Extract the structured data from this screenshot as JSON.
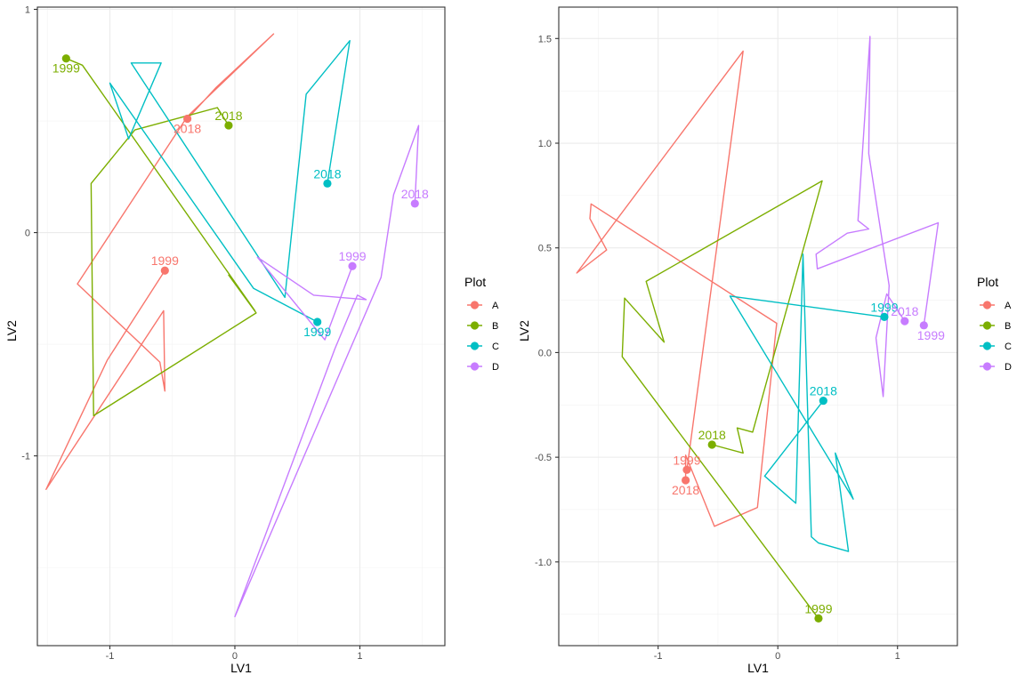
{
  "chart_data": [
    {
      "type": "line",
      "xlabel": "LV1",
      "ylabel": "LV2",
      "xlim": [
        -1.58,
        1.68
      ],
      "ylim": [
        -1.85,
        1.01
      ],
      "xticks": [
        -1,
        0,
        1
      ],
      "yticks": [
        -1,
        0,
        1
      ],
      "grid": true,
      "legend": {
        "title": "Plot",
        "placement": "right",
        "entries": [
          {
            "label": "A",
            "color": "#F8766D"
          },
          {
            "label": "B",
            "color": "#7CAE00"
          },
          {
            "label": "C",
            "color": "#00BFC4"
          },
          {
            "label": "D",
            "color": "#C77CFF"
          }
        ]
      },
      "series": [
        {
          "name": "A",
          "color": "#F8766D",
          "path": [
            [
              -0.56,
              -0.17
            ],
            [
              -1.02,
              -0.57
            ],
            [
              -1.51,
              -1.15
            ],
            [
              -0.57,
              -0.35
            ],
            [
              -0.56,
              -0.71
            ],
            [
              -0.6,
              -0.58
            ],
            [
              -1.26,
              -0.23
            ],
            [
              -0.38,
              0.52
            ],
            [
              0.31,
              0.89
            ],
            [
              -0.15,
              0.65
            ],
            [
              -0.38,
              0.51
            ]
          ],
          "labeled_points": [
            {
              "x": -0.56,
              "y": -0.17,
              "label": "1999"
            },
            {
              "x": -0.38,
              "y": 0.51,
              "label": "2018"
            }
          ]
        },
        {
          "name": "B",
          "color": "#7CAE00",
          "path": [
            [
              -1.35,
              0.78
            ],
            [
              -1.22,
              0.75
            ],
            [
              0.16,
              -0.35
            ],
            [
              -0.05,
              -0.19
            ],
            [
              0.17,
              -0.36
            ],
            [
              -1.13,
              -0.82
            ],
            [
              -1.15,
              0.22
            ],
            [
              -0.8,
              0.46
            ],
            [
              -0.14,
              0.56
            ],
            [
              -0.05,
              0.48
            ]
          ],
          "labeled_points": [
            {
              "x": -1.35,
              "y": 0.78,
              "label": "1999"
            },
            {
              "x": -0.05,
              "y": 0.48,
              "label": "2018"
            }
          ]
        },
        {
          "name": "C",
          "color": "#00BFC4",
          "path": [
            [
              0.66,
              -0.4
            ],
            [
              0.15,
              -0.25
            ],
            [
              -1.0,
              0.67
            ],
            [
              -0.85,
              0.42
            ],
            [
              -0.59,
              0.76
            ],
            [
              -0.83,
              0.76
            ],
            [
              0.4,
              -0.29
            ],
            [
              0.57,
              0.62
            ],
            [
              0.92,
              0.86
            ],
            [
              0.74,
              0.22
            ]
          ],
          "labeled_points": [
            {
              "x": 0.66,
              "y": -0.4,
              "label": "1999"
            },
            {
              "x": 0.74,
              "y": 0.22,
              "label": "2018"
            }
          ]
        },
        {
          "name": "D",
          "color": "#C77CFF",
          "path": [
            [
              0.94,
              -0.15
            ],
            [
              0.72,
              -0.48
            ],
            [
              0.18,
              -0.11
            ],
            [
              0.63,
              -0.28
            ],
            [
              1.05,
              -0.3
            ],
            [
              0.98,
              -0.28
            ],
            [
              0.8,
              -0.52
            ],
            [
              0.0,
              -1.72
            ],
            [
              1.17,
              -0.2
            ],
            [
              1.27,
              0.17
            ],
            [
              1.47,
              0.48
            ],
            [
              1.44,
              0.13
            ]
          ],
          "labeled_points": [
            {
              "x": 0.94,
              "y": -0.15,
              "label": "1999"
            },
            {
              "x": 1.44,
              "y": 0.13,
              "label": "2018"
            }
          ]
        }
      ]
    },
    {
      "type": "line",
      "xlabel": "LV1",
      "ylabel": "LV2",
      "xlim": [
        -1.83,
        1.5
      ],
      "ylim": [
        -1.4,
        1.65
      ],
      "xticks": [
        -1,
        0,
        1
      ],
      "yticks": [
        -1.0,
        -0.5,
        0.0,
        0.5,
        1.0,
        1.5
      ],
      "yticklabels": [
        "-1.0",
        "-0.5",
        "0.0",
        "0.5",
        "1.0",
        "1.5"
      ],
      "grid": true,
      "legend": {
        "title": "Plot",
        "placement": "right",
        "entries": [
          {
            "label": "A",
            "color": "#F8766D"
          },
          {
            "label": "B",
            "color": "#7CAE00"
          },
          {
            "label": "C",
            "color": "#00BFC4"
          },
          {
            "label": "D",
            "color": "#C77CFF"
          }
        ]
      },
      "series": [
        {
          "name": "A",
          "color": "#F8766D",
          "path": [
            [
              -0.76,
              -0.56
            ],
            [
              -0.29,
              1.44
            ],
            [
              -1.68,
              0.38
            ],
            [
              -1.43,
              0.49
            ],
            [
              -1.57,
              0.64
            ],
            [
              -1.56,
              0.71
            ],
            [
              -0.01,
              0.14
            ],
            [
              -0.17,
              -0.74
            ],
            [
              -0.53,
              -0.83
            ],
            [
              -0.77,
              -0.49
            ],
            [
              -0.77,
              -0.61
            ]
          ],
          "labeled_points": [
            {
              "x": -0.76,
              "y": -0.56,
              "label": "1999"
            },
            {
              "x": -0.77,
              "y": -0.61,
              "label": "2018"
            }
          ]
        },
        {
          "name": "B",
          "color": "#7CAE00",
          "path": [
            [
              0.34,
              -1.27
            ],
            [
              -1.3,
              -0.02
            ],
            [
              -1.28,
              0.26
            ],
            [
              -0.95,
              0.05
            ],
            [
              -1.1,
              0.34
            ],
            [
              0.37,
              0.82
            ],
            [
              -0.21,
              -0.38
            ],
            [
              -0.34,
              -0.36
            ],
            [
              -0.29,
              -0.48
            ],
            [
              -0.55,
              -0.44
            ]
          ],
          "labeled_points": [
            {
              "x": 0.34,
              "y": -1.27,
              "label": "1999"
            },
            {
              "x": -0.55,
              "y": -0.44,
              "label": "2018"
            }
          ]
        },
        {
          "name": "C",
          "color": "#00BFC4",
          "path": [
            [
              0.89,
              0.17
            ],
            [
              -0.4,
              0.27
            ],
            [
              0.63,
              -0.7
            ],
            [
              0.48,
              -0.48
            ],
            [
              0.59,
              -0.95
            ],
            [
              0.34,
              -0.91
            ],
            [
              0.28,
              -0.88
            ],
            [
              0.21,
              0.47
            ],
            [
              0.15,
              -0.72
            ],
            [
              -0.11,
              -0.59
            ],
            [
              0.38,
              -0.23
            ]
          ],
          "labeled_points": [
            {
              "x": 0.89,
              "y": 0.17,
              "label": "1999"
            },
            {
              "x": 0.38,
              "y": -0.23,
              "label": "2018"
            }
          ]
        },
        {
          "name": "D",
          "color": "#C77CFF",
          "path": [
            [
              1.22,
              0.13
            ],
            [
              1.34,
              0.62
            ],
            [
              0.33,
              0.4
            ],
            [
              0.32,
              0.47
            ],
            [
              0.58,
              0.57
            ],
            [
              0.76,
              0.59
            ],
            [
              0.67,
              0.63
            ],
            [
              0.77,
              1.51
            ],
            [
              0.76,
              0.95
            ],
            [
              0.93,
              0.32
            ],
            [
              0.88,
              -0.21
            ],
            [
              0.82,
              0.07
            ],
            [
              0.91,
              0.28
            ],
            [
              1.06,
              0.15
            ]
          ],
          "labeled_points": [
            {
              "x": 1.22,
              "y": 0.13,
              "label": "1999"
            },
            {
              "x": 1.06,
              "y": 0.15,
              "label": "2018"
            }
          ]
        }
      ]
    }
  ]
}
